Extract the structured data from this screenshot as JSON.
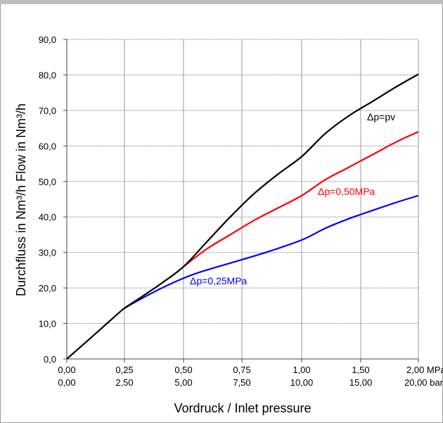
{
  "chart_data": {
    "type": "line",
    "title": "",
    "xlabel": "Vordruck / Inlet pressure",
    "ylabel": "Durchfluss in Nm³/h   Flow in Nm³/h",
    "xlim": [
      0,
      2
    ],
    "ylim": [
      0,
      90
    ],
    "grid": true,
    "y_ticks": [
      "0,0",
      "10,0",
      "20,0",
      "30,0",
      "40,0",
      "50,0",
      "60,0",
      "70,0",
      "80,0",
      "90,0"
    ],
    "y_tick_values": [
      0,
      10,
      20,
      30,
      40,
      50,
      60,
      70,
      80,
      90
    ],
    "x_tick_values": [
      0,
      0.25,
      0.5,
      0.75,
      1.0,
      1.5,
      2.0
    ],
    "x_ticks_mpa": [
      "0,00",
      "0,25",
      "0,50",
      "0,75",
      "1,00",
      "1,50",
      "2,00 MPa"
    ],
    "x_ticks_bar": [
      "0,00",
      "2,50",
      "5,00",
      "7,50",
      "10,00",
      "15,00",
      "20,00 bar"
    ],
    "series": [
      {
        "name": "Δp=pv",
        "color": "#000000",
        "x": [
          0,
          0.1,
          0.2,
          0.25,
          0.3,
          0.4,
          0.5,
          0.6,
          0.7,
          0.8,
          0.9,
          1.0,
          1.2,
          1.4,
          1.6,
          1.8,
          2.0
        ],
        "y": [
          0,
          5.7,
          11.5,
          14.3,
          16.5,
          21.0,
          26.0,
          33.0,
          40.0,
          46.5,
          52.0,
          57.0,
          63.5,
          68.5,
          72.5,
          76.5,
          80.2
        ]
      },
      {
        "name": "Δp=0,50MPa",
        "color": "#ff0000",
        "x": [
          0.5,
          0.6,
          0.7,
          0.8,
          0.9,
          1.0,
          1.2,
          1.4,
          1.6,
          1.8,
          2.0
        ],
        "y": [
          26.0,
          31.0,
          35.0,
          39.0,
          42.5,
          46.0,
          50.5,
          54.0,
          57.5,
          61.0,
          64.0
        ]
      },
      {
        "name": "Δp=0,25MPa",
        "color": "#0000ff",
        "x": [
          0.25,
          0.35,
          0.45,
          0.55,
          0.7,
          0.85,
          1.0,
          1.2,
          1.4,
          1.6,
          1.8,
          2.0
        ],
        "y": [
          14.3,
          18.0,
          21.3,
          24.0,
          27.0,
          30.0,
          33.5,
          36.8,
          39.5,
          41.8,
          44.0,
          46.0
        ]
      }
    ],
    "annotations": [
      {
        "text": "Δp=pv",
        "series": 0
      },
      {
        "text": "Δp=0,50MPa",
        "series": 1
      },
      {
        "text": "Δp=0,25MPa",
        "series": 2
      }
    ]
  }
}
